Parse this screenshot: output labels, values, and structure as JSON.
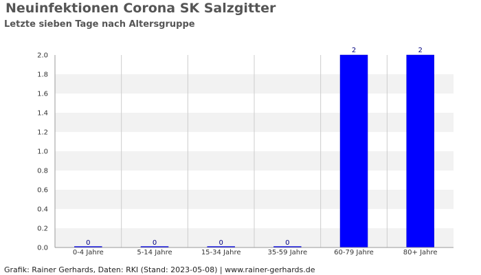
{
  "header": {
    "title": "Neuinfektionen Corona SK Salzgitter",
    "subtitle": "Letzte sieben Tage nach Altersgruppe"
  },
  "footer": {
    "text": "Grafik: Rainer Gerhards, Daten: RKI (Stand: 2023-05-08) | www.rainer-gerhards.de"
  },
  "colors": {
    "bar": "#0000ff",
    "band": "#f2f2f2",
    "grid": "#cccccc",
    "axis": "#999999"
  },
  "chart_data": {
    "type": "bar",
    "title": "Neuinfektionen Corona SK Salzgitter",
    "subtitle": "Letzte sieben Tage nach Altersgruppe",
    "categories": [
      "0-4 Jahre",
      "5-14 Jahre",
      "15-34 Jahre",
      "35-59 Jahre",
      "60-79 Jahre",
      "80+ Jahre"
    ],
    "values": [
      0,
      0,
      0,
      0,
      2,
      2
    ],
    "ylim": [
      0,
      2.0
    ],
    "yticks": [
      "0.0",
      "0.2",
      "0.4",
      "0.6",
      "0.8",
      "1.0",
      "1.2",
      "1.4",
      "1.6",
      "1.8",
      "2.0"
    ],
    "xlabel": "",
    "ylabel": "",
    "grid": true,
    "legend": "none"
  }
}
